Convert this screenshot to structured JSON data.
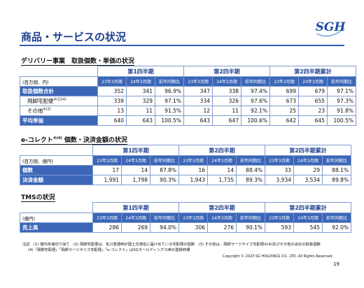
{
  "header": {
    "title": "商品・サービスの状況",
    "logo": "SGH"
  },
  "sections": [
    {
      "heading": "デリバリー事業　取扱個数・単価の状況",
      "heading_sup": "",
      "table": {
        "groups": [
          "第1四半期",
          "第2四半期",
          "第2四半期累計"
        ],
        "unit": "(百万個、円)",
        "columns": [
          "23年3月期",
          "24年3月期",
          "前年同期比",
          "23年3月期",
          "24年3月期",
          "前年同期比",
          "23年3月期",
          "24年3月期",
          "前年同期比"
        ],
        "rows": [
          {
            "label": "取扱個数合計",
            "label_sup": "",
            "cells": [
              "352",
              "341",
              "96.9%",
              "347",
              "338",
              "97.4%",
              "699",
              "679",
              "97.1%"
            ]
          },
          {
            "label": "飛脚宅配便",
            "label_sup": "※(2)(4)",
            "cells": [
              "339",
              "329",
              "97.1%",
              "334",
              "326",
              "97.6%",
              "673",
              "655",
              "97.3%"
            ]
          },
          {
            "label": "その他",
            "label_sup": "※(3)",
            "cells": [
              "13",
              "11",
              "91.5%",
              "12",
              "11",
              "92.1%",
              "25",
              "23",
              "91.8%"
            ]
          },
          {
            "label": "平均単価",
            "label_sup": "",
            "cells": [
              "640",
              "643",
              "100.5%",
              "643",
              "647",
              "100.6%",
              "642",
              "645",
              "100.5%"
            ]
          }
        ]
      }
    },
    {
      "heading": "e-コレクト",
      "heading_sup": "※(4)",
      "heading_rest": " 個数・決済金額の状況",
      "table": {
        "groups": [
          "第1四半期",
          "第2四半期",
          "第2四半期累計"
        ],
        "unit": "(百万個、億円)",
        "columns": [
          "23年3月期",
          "24年3月期",
          "前年同期比",
          "23年3月期",
          "24年3月期",
          "前年同期比",
          "23年3月期",
          "24年3月期",
          "前年同期比"
        ],
        "rows": [
          {
            "label": "個数",
            "label_sup": "",
            "cells": [
              "17",
              "14",
              "87.8%",
              "16",
              "14",
              "88.4%",
              "33",
              "29",
              "88.1%"
            ]
          },
          {
            "label": "決済金額",
            "label_sup": "",
            "cells": [
              "1,991",
              "1,798",
              "90.3%",
              "1,943",
              "1,735",
              "89.3%",
              "3,934",
              "3,534",
              "89.8%"
            ]
          }
        ]
      }
    },
    {
      "heading": "TMSの状況",
      "heading_sup": "",
      "table": {
        "groups": [
          "第1四半期",
          "第2四半期",
          "第2四半期累計"
        ],
        "unit": "(億円)",
        "columns": [
          "23年3月期",
          "24年3月期",
          "前年同期比",
          "23年3月期",
          "24年3月期",
          "前年同期比",
          "23年3月期",
          "24年3月期",
          "前年同期比"
        ],
        "rows": [
          {
            "label": "売上高",
            "label_sup": "",
            "cells": [
              "286",
              "269",
              "94.0%",
              "306",
              "276",
              "90.1%",
              "593",
              "545",
              "92.0%"
            ]
          }
        ]
      }
    }
  ],
  "notes": [
    "注記　(1) 億円未満切り捨て　(2) 飛脚宅配便は、佐川急便㈱が国土交通省に届け出ている宅配便の個数　(3) その他は、飛脚ラージサイズ宅配便※(4)及びその他の会社の取扱個数",
    "(4)「飛脚宅配便」「飛脚ラージサイズ宅配便」「e-コレクト」はSGホールディングス㈱の登録商標"
  ],
  "copyright": "Copyright © 2023 SG HOLDINGS CO., LTD.  All Rights Reserved.",
  "page_number": "19"
}
